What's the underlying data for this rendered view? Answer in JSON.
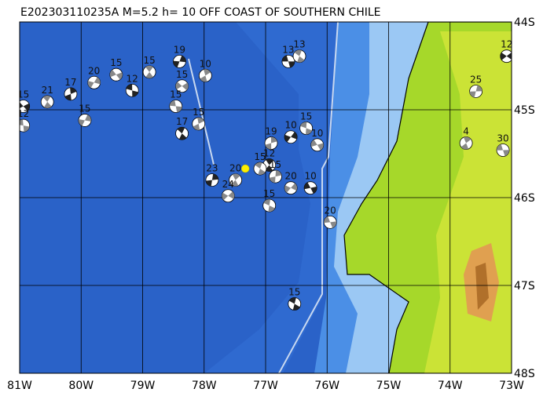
{
  "title": "E202303110235A M=5.2 h= 10 OFF COAST OF SOUTHERN CHILE",
  "map": {
    "xlim": [
      -81,
      -73
    ],
    "ylim": [
      -48,
      -44
    ],
    "xticks": [
      {
        "value": -81,
        "label": "81W"
      },
      {
        "value": -80,
        "label": "80W"
      },
      {
        "value": -79,
        "label": "79W"
      },
      {
        "value": -78,
        "label": "78W"
      },
      {
        "value": -77,
        "label": "77W"
      },
      {
        "value": -76,
        "label": "76W"
      },
      {
        "value": -75,
        "label": "75W"
      },
      {
        "value": -74,
        "label": "74W"
      },
      {
        "value": -73,
        "label": "73W"
      }
    ],
    "yticks": [
      {
        "value": -44,
        "label": "44S"
      },
      {
        "value": -45,
        "label": "45S"
      },
      {
        "value": -46,
        "label": "46S"
      },
      {
        "value": -47,
        "label": "47S"
      },
      {
        "value": -48,
        "label": "48S"
      }
    ],
    "epicenter": {
      "lon": -77.33,
      "lat": -45.67
    },
    "events": [
      {
        "lon": -76.63,
        "lat": -44.45,
        "depth": 13
      },
      {
        "lon": -76.45,
        "lat": -44.39,
        "depth": 13
      },
      {
        "lon": -77.98,
        "lat": -44.61,
        "depth": 10
      },
      {
        "lon": -78.4,
        "lat": -44.45,
        "depth": 19
      },
      {
        "lon": -78.36,
        "lat": -44.73,
        "depth": 15
      },
      {
        "lon": -78.46,
        "lat": -44.96,
        "depth": 15
      },
      {
        "lon": -78.36,
        "lat": -45.27,
        "depth": 17
      },
      {
        "lon": -78.09,
        "lat": -45.16,
        "depth": 15
      },
      {
        "lon": -79.94,
        "lat": -45.12,
        "depth": 15
      },
      {
        "lon": -80.94,
        "lat": -44.96,
        "depth": 15
      },
      {
        "lon": -80.94,
        "lat": -45.18,
        "depth": 12
      },
      {
        "lon": -80.55,
        "lat": -44.91,
        "depth": 21
      },
      {
        "lon": -80.17,
        "lat": -44.82,
        "depth": 17
      },
      {
        "lon": -79.79,
        "lat": -44.69,
        "depth": 20
      },
      {
        "lon": -79.43,
        "lat": -44.6,
        "depth": 15
      },
      {
        "lon": -79.17,
        "lat": -44.78,
        "depth": 12
      },
      {
        "lon": -78.89,
        "lat": -44.57,
        "depth": 15
      },
      {
        "lon": -76.91,
        "lat": -45.38,
        "depth": 19
      },
      {
        "lon": -76.59,
        "lat": -45.31,
        "depth": 10
      },
      {
        "lon": -76.16,
        "lat": -45.4,
        "depth": 10
      },
      {
        "lon": -76.34,
        "lat": -45.21,
        "depth": 15
      },
      {
        "lon": -76.94,
        "lat": -45.63,
        "depth": 12
      },
      {
        "lon": -76.84,
        "lat": -45.76,
        "depth": 15
      },
      {
        "lon": -76.59,
        "lat": -45.89,
        "depth": 20
      },
      {
        "lon": -76.27,
        "lat": -45.89,
        "depth": 10
      },
      {
        "lon": -76.94,
        "lat": -46.09,
        "depth": 15
      },
      {
        "lon": -77.49,
        "lat": -45.8,
        "depth": 20
      },
      {
        "lon": -77.87,
        "lat": -45.8,
        "depth": 23
      },
      {
        "lon": -77.61,
        "lat": -45.98,
        "depth": 24
      },
      {
        "lon": -75.95,
        "lat": -46.28,
        "depth": 20
      },
      {
        "lon": -76.53,
        "lat": -47.21,
        "depth": 15
      },
      {
        "lon": -73.74,
        "lat": -45.38,
        "depth": 4
      },
      {
        "lon": -73.58,
        "lat": -44.79,
        "depth": 25
      },
      {
        "lon": -73.08,
        "lat": -44.39,
        "depth": 12
      },
      {
        "lon": -73.14,
        "lat": -45.46,
        "depth": 30
      },
      {
        "lon": -77.09,
        "lat": -45.67,
        "depth": 15
      }
    ]
  }
}
